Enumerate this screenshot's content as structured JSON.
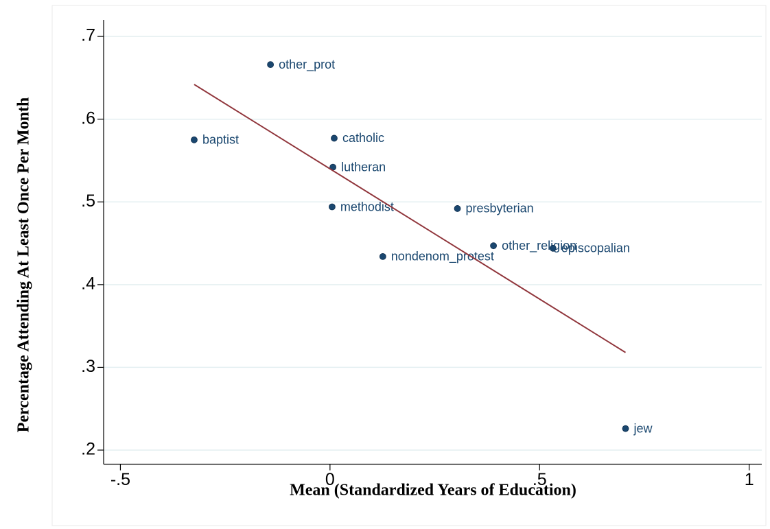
{
  "chart_data": {
    "type": "scatter",
    "x_label": "Mean (Standardized Years of Education)",
    "y_label": "Percentage Attending At Least Once Per Month",
    "xlim": [
      -0.54,
      1.03
    ],
    "ylim": [
      0.183,
      0.72
    ],
    "xticks": [
      {
        "value": -0.5,
        "label": "-.5"
      },
      0,
      {
        "value": 0.5,
        "label": ".5"
      },
      1
    ],
    "yticks": [
      {
        "value": 0.2,
        "label": ".2"
      },
      {
        "value": 0.3,
        "label": ".3"
      },
      {
        "value": 0.4,
        "label": ".4"
      },
      {
        "value": 0.5,
        "label": ".5"
      },
      {
        "value": 0.6,
        "label": ".6"
      },
      {
        "value": 0.7,
        "label": ".7"
      }
    ],
    "grid": true,
    "series": [
      {
        "type": "scatter",
        "color": "#1a476f",
        "labels": [
          "other_prot",
          "baptist",
          "catholic",
          "lutheran",
          "methodist",
          "presbyterian",
          "other_religion",
          "episcopalian",
          "nondenom_protest",
          "jew"
        ],
        "x": [
          -0.142,
          -0.324,
          0.01,
          0.007,
          0.005,
          0.304,
          0.39,
          0.532,
          0.126,
          0.705
        ],
        "y": [
          0.666,
          0.575,
          0.577,
          0.542,
          0.494,
          0.492,
          0.447,
          0.444,
          0.434,
          0.226
        ]
      },
      {
        "type": "line",
        "color": "#90353b",
        "x": [
          -0.324,
          0.705
        ],
        "y": [
          0.642,
          0.318
        ]
      }
    ]
  }
}
